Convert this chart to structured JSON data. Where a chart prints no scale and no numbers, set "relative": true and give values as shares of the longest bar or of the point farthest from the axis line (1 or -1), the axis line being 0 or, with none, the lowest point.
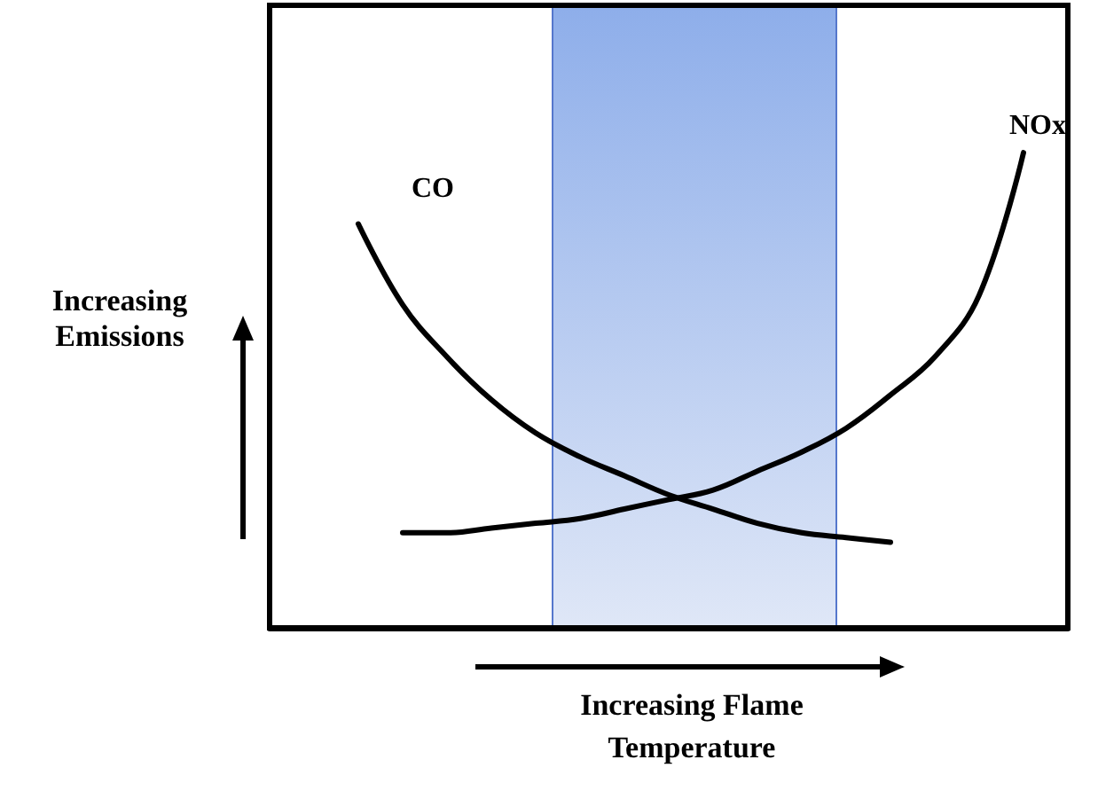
{
  "chart_data": {
    "type": "line",
    "relative": true,
    "xlabel": "Increasing Flame Temperature",
    "ylabel": "Increasing Emissions",
    "categories": [
      null,
      null,
      null,
      null,
      null,
      null,
      null,
      null,
      null,
      null,
      null,
      null,
      null,
      null,
      null,
      null,
      null,
      null,
      null
    ],
    "series": [
      {
        "name": "CO",
        "color": "#000000",
        "values": [
          null,
          null,
          0.85,
          0.68,
          0.57,
          0.48,
          0.41,
          0.36,
          0.32,
          0.28,
          0.25,
          0.22,
          0.2,
          0.19,
          0.18,
          null,
          null,
          null,
          null
        ]
      },
      {
        "name": "NOx",
        "color": "#000000",
        "values": [
          null,
          null,
          null,
          0.2,
          0.2,
          0.21,
          0.22,
          0.23,
          0.25,
          0.27,
          0.29,
          0.33,
          0.37,
          0.42,
          0.49,
          0.57,
          0.7,
          1,
          null
        ]
      }
    ],
    "marker": "none",
    "line_style": "solid",
    "grid": false,
    "legend": false
  }
}
